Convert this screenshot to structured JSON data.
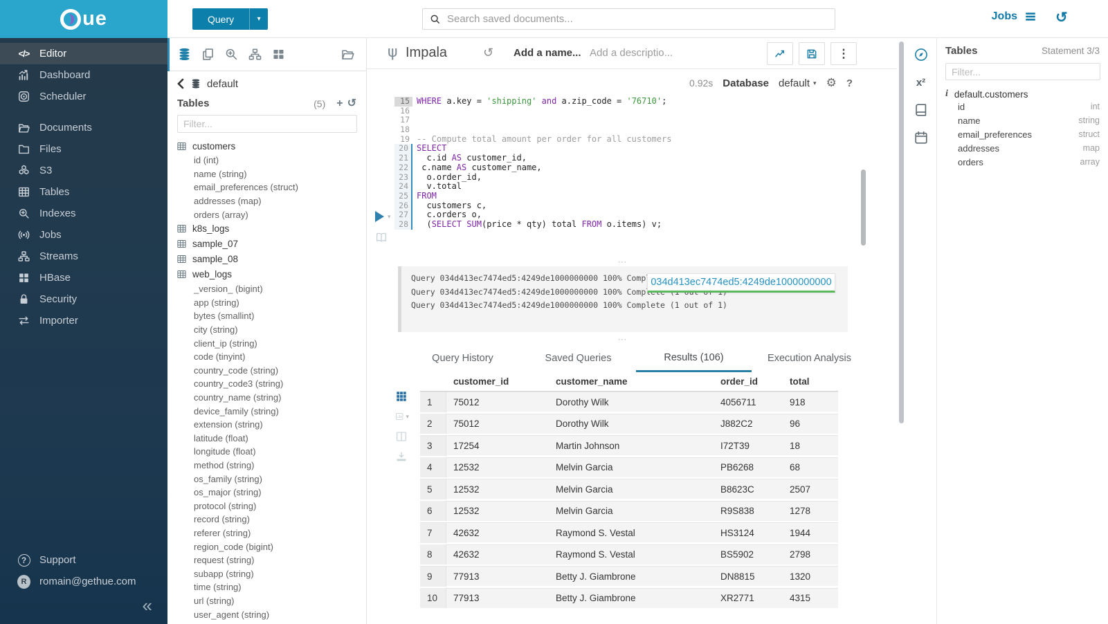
{
  "colors": {
    "band": "#2aa6cd",
    "accent": "#0c7fab",
    "tab_underline": "#2b7fa5",
    "keyword": "#8026a8",
    "string": "#3c963c"
  },
  "sidebar": {
    "groups": [
      {
        "items": [
          {
            "label": "Editor",
            "icon": "code-icon",
            "active": true
          },
          {
            "label": "Dashboard",
            "icon": "dashboard-icon",
            "active": false
          },
          {
            "label": "Scheduler",
            "icon": "scheduler-icon",
            "active": false
          }
        ]
      },
      {
        "items": [
          {
            "label": "Documents",
            "icon": "documents-icon",
            "active": false
          },
          {
            "label": "Files",
            "icon": "folder-icon",
            "active": false
          },
          {
            "label": "S3",
            "icon": "cubes-icon",
            "active": false
          },
          {
            "label": "Tables",
            "icon": "table-icon",
            "active": false
          },
          {
            "label": "Indexes",
            "icon": "search-plus-icon",
            "active": false
          },
          {
            "label": "Jobs",
            "icon": "broadcast-icon",
            "active": false
          },
          {
            "label": "Streams",
            "icon": "sitemap-icon",
            "active": false
          },
          {
            "label": "HBase",
            "icon": "blocks-icon",
            "active": false
          },
          {
            "label": "Security",
            "icon": "lock-icon",
            "active": false
          },
          {
            "label": "Importer",
            "icon": "exchange-icon",
            "active": false
          }
        ]
      }
    ],
    "support_label": "Support",
    "user_email": "romain@gethue.com",
    "user_initial": "R",
    "collapse_glyph": "«"
  },
  "topbar": {
    "query_label": "Query",
    "search_placeholder": "Search saved documents...",
    "jobs_label": "Jobs"
  },
  "dbpanel": {
    "breadcrumb": "default",
    "tables_label": "Tables",
    "count": "(5)",
    "filter_placeholder": "Filter...",
    "tables": [
      {
        "name": "customers",
        "columns": [
          "id (int)",
          "name (string)",
          "email_preferences (struct)",
          "addresses (map)",
          "orders (array)"
        ]
      },
      {
        "name": "k8s_logs",
        "columns": []
      },
      {
        "name": "sample_07",
        "columns": []
      },
      {
        "name": "sample_08",
        "columns": []
      },
      {
        "name": "web_logs",
        "columns": [
          "_version_ (bigint)",
          "app (string)",
          "bytes (smallint)",
          "city (string)",
          "client_ip (string)",
          "code (tinyint)",
          "country_code (string)",
          "country_code3 (string)",
          "country_name (string)",
          "device_family (string)",
          "extension (string)",
          "latitude (float)",
          "longitude (float)",
          "method (string)",
          "os_family (string)",
          "os_major (string)",
          "protocol (string)",
          "record (string)",
          "referer (string)",
          "region_code (bigint)",
          "request (string)",
          "subapp (string)",
          "time (string)",
          "url (string)",
          "user_agent (string)"
        ]
      }
    ]
  },
  "editor": {
    "engine": "Impala",
    "name_placeholder": "Add a name...",
    "desc_placeholder": "Add a descriptio...",
    "duration": "0.92s",
    "database_label": "Database",
    "database_value": "default",
    "lines": [
      {
        "n": 15,
        "cursorline": true,
        "marker": false,
        "tokens": [
          [
            "k",
            "WHERE"
          ],
          [
            "t",
            " a.key = "
          ],
          [
            "s",
            "'shipping'"
          ],
          [
            "t",
            " "
          ],
          [
            "k",
            "and"
          ],
          [
            "t",
            " a.zip_code = "
          ],
          [
            "s",
            "'76710'"
          ],
          [
            "t",
            ";"
          ]
        ]
      },
      {
        "n": 16,
        "cursorline": false,
        "marker": false,
        "tokens": []
      },
      {
        "n": 17,
        "cursorline": false,
        "marker": false,
        "tokens": []
      },
      {
        "n": 18,
        "cursorline": false,
        "marker": false,
        "tokens": []
      },
      {
        "n": 19,
        "cursorline": false,
        "marker": false,
        "tokens": [
          [
            "c",
            "-- Compute total amount per order for all customers"
          ]
        ]
      },
      {
        "n": 20,
        "cursorline": false,
        "marker": true,
        "tokens": [
          [
            "k",
            "SELECT"
          ]
        ]
      },
      {
        "n": 21,
        "cursorline": false,
        "marker": true,
        "tokens": [
          [
            "t",
            "  c.id "
          ],
          [
            "k",
            "AS"
          ],
          [
            "t",
            " customer_id,"
          ]
        ]
      },
      {
        "n": 22,
        "cursorline": false,
        "marker": true,
        "tokens": [
          [
            "t",
            " c.name "
          ],
          [
            "k",
            "AS"
          ],
          [
            "t",
            " customer_name,"
          ]
        ]
      },
      {
        "n": 23,
        "cursorline": false,
        "marker": true,
        "tokens": [
          [
            "t",
            "  o.order_id,"
          ]
        ]
      },
      {
        "n": 24,
        "cursorline": false,
        "marker": true,
        "tokens": [
          [
            "t",
            "  v.total"
          ]
        ]
      },
      {
        "n": 25,
        "cursorline": false,
        "marker": true,
        "tokens": [
          [
            "k",
            "FROM"
          ]
        ]
      },
      {
        "n": 26,
        "cursorline": false,
        "marker": true,
        "tokens": [
          [
            "t",
            "  customers c,"
          ]
        ]
      },
      {
        "n": 27,
        "cursorline": false,
        "marker": true,
        "tokens": [
          [
            "t",
            "  c.orders o,"
          ]
        ]
      },
      {
        "n": 28,
        "cursorline": false,
        "marker": true,
        "tokens": [
          [
            "t",
            "  ("
          ],
          [
            "k",
            "SELECT"
          ],
          [
            "t",
            " "
          ],
          [
            "k",
            "SUM"
          ],
          [
            "t",
            "(price * qty) total "
          ],
          [
            "k",
            "FROM"
          ],
          [
            "t",
            " o.items) v;"
          ]
        ]
      }
    ]
  },
  "log": {
    "lines": [
      "Query 034d413ec7474ed5:4249de1000000000 100% Complete (1 out of 1)",
      "Query 034d413ec7474ed5:4249de1000000000 100% Complete (1 out of 1)",
      "Query 034d413ec7474ed5:4249de1000000000 100% Complete (1 out of 1)"
    ],
    "job_id": "034d413ec7474ed5:4249de1000000000"
  },
  "tabs": {
    "items": [
      "Query History",
      "Saved Queries",
      "Results (106)",
      "Execution Analysis"
    ],
    "active_index": 2
  },
  "results": {
    "columns": [
      "customer_id",
      "customer_name",
      "order_id",
      "total"
    ],
    "rows": [
      [
        "1",
        "75012",
        "Dorothy Wilk",
        "4056711",
        "918"
      ],
      [
        "2",
        "75012",
        "Dorothy Wilk",
        "J882C2",
        "96"
      ],
      [
        "3",
        "17254",
        "Martin Johnson",
        "I72T39",
        "18"
      ],
      [
        "4",
        "12532",
        "Melvin Garcia",
        "PB6268",
        "68"
      ],
      [
        "5",
        "12532",
        "Melvin Garcia",
        "B8623C",
        "2507"
      ],
      [
        "6",
        "12532",
        "Melvin Garcia",
        "R9S838",
        "1278"
      ],
      [
        "7",
        "42632",
        "Raymond S. Vestal",
        "HS3124",
        "1944"
      ],
      [
        "8",
        "42632",
        "Raymond S. Vestal",
        "BS5902",
        "2798"
      ],
      [
        "9",
        "77913",
        "Betty J. Giambrone",
        "DN8815",
        "1320"
      ],
      [
        "10",
        "77913",
        "Betty J. Giambrone",
        "XR2771",
        "4315"
      ]
    ]
  },
  "assist": {
    "header": "Tables",
    "statement": "Statement 3/3",
    "filter_placeholder": "Filter...",
    "table_name": "default.customers",
    "columns": [
      {
        "name": "id",
        "type": "int"
      },
      {
        "name": "name",
        "type": "string"
      },
      {
        "name": "email_preferences",
        "type": "struct"
      },
      {
        "name": "addresses",
        "type": "map"
      },
      {
        "name": "orders",
        "type": "array"
      }
    ]
  }
}
